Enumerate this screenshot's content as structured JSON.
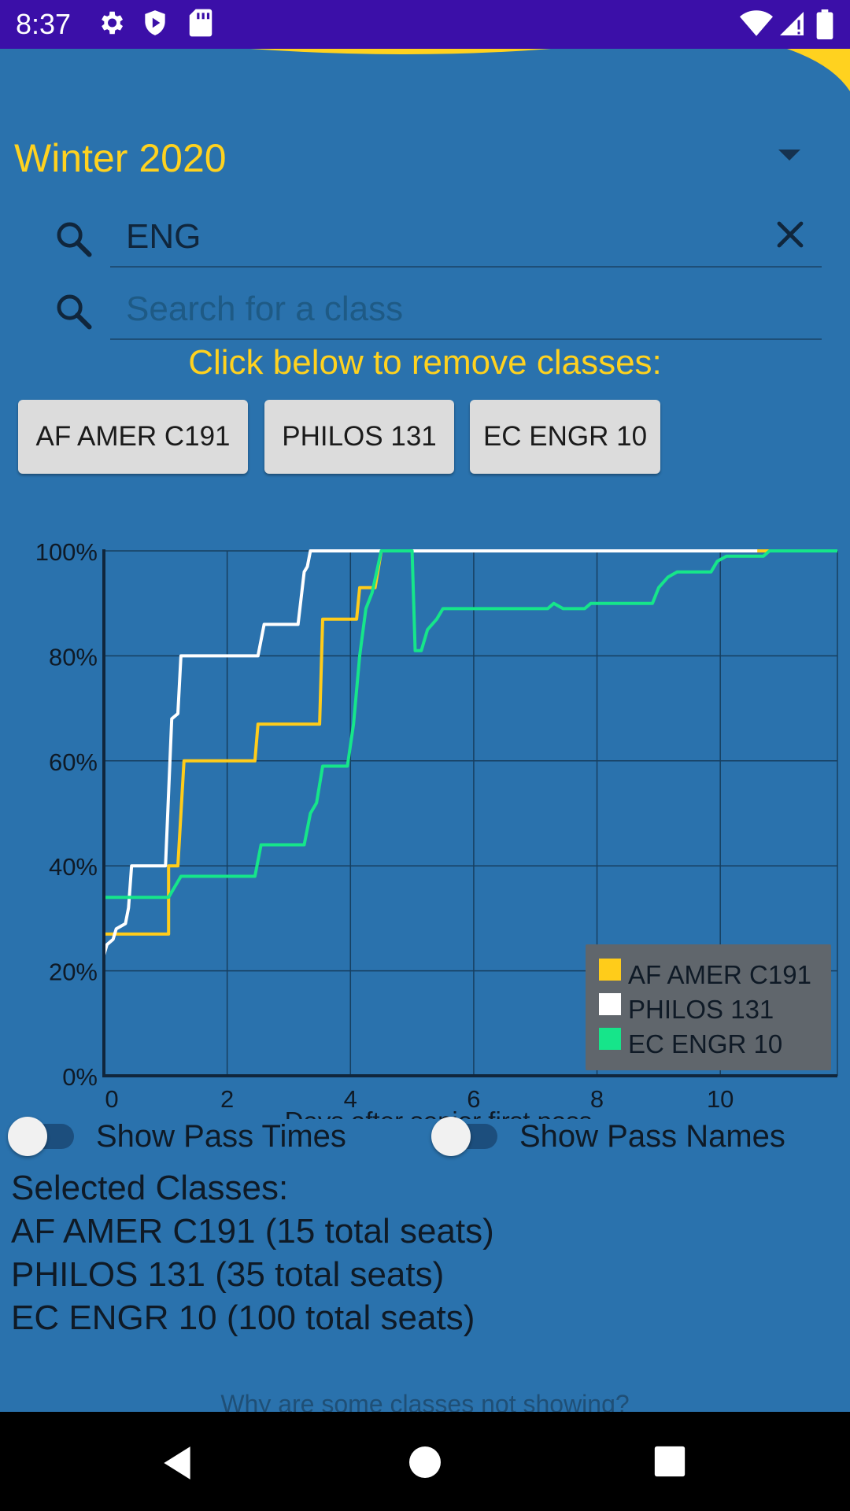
{
  "status_bar": {
    "time": "8:37"
  },
  "term_selector": {
    "label": "Winter 2020"
  },
  "search": {
    "query": "ENG",
    "placeholder": "Search for a class"
  },
  "remove_label": "Click below to remove classes:",
  "class_chips": [
    "AF AMER C191",
    "PHILOS 131",
    "EC ENGR 10"
  ],
  "chart_data": {
    "type": "line",
    "xlabel": "Days after senior first pass",
    "ylabel": "",
    "xlim": [
      0,
      11.9
    ],
    "ylim": [
      0,
      100
    ],
    "x_ticks": [
      "0",
      "2",
      "4",
      "6",
      "8",
      "10"
    ],
    "y_ticks": [
      "0%",
      "20%",
      "40%",
      "60%",
      "80%",
      "100%"
    ],
    "grid": true,
    "legend": "bottom-right",
    "series": [
      {
        "name": "AF AMER C191",
        "color": "#ffcc1a",
        "points": [
          [
            0,
            27
          ],
          [
            1.05,
            27
          ],
          [
            1.05,
            40
          ],
          [
            1.2,
            40
          ],
          [
            1.3,
            60
          ],
          [
            2.45,
            60
          ],
          [
            2.5,
            67
          ],
          [
            3.5,
            67
          ],
          [
            3.55,
            87
          ],
          [
            4.1,
            87
          ],
          [
            4.15,
            93
          ],
          [
            4.4,
            93
          ],
          [
            4.5,
            100
          ],
          [
            11.9,
            100
          ]
        ]
      },
      {
        "name": "PHILOS 131",
        "color": "#ffffff",
        "points": [
          [
            0,
            23
          ],
          [
            0.05,
            25
          ],
          [
            0.15,
            26
          ],
          [
            0.2,
            28
          ],
          [
            0.35,
            29
          ],
          [
            0.4,
            32
          ],
          [
            0.45,
            40
          ],
          [
            1.0,
            40
          ],
          [
            1.1,
            68
          ],
          [
            1.2,
            69
          ],
          [
            1.25,
            80
          ],
          [
            2.5,
            80
          ],
          [
            2.6,
            86
          ],
          [
            3.15,
            86
          ],
          [
            3.25,
            96
          ],
          [
            3.3,
            97
          ],
          [
            3.35,
            100
          ],
          [
            10.6,
            100
          ]
        ]
      },
      {
        "name": "EC ENGR 10",
        "color": "#16e58a",
        "points": [
          [
            0,
            34
          ],
          [
            1.05,
            34
          ],
          [
            1.15,
            36
          ],
          [
            1.25,
            38
          ],
          [
            2.45,
            38
          ],
          [
            2.55,
            44
          ],
          [
            3.25,
            44
          ],
          [
            3.35,
            50
          ],
          [
            3.45,
            52
          ],
          [
            3.55,
            59
          ],
          [
            3.95,
            59
          ],
          [
            4.05,
            67
          ],
          [
            4.15,
            80
          ],
          [
            4.25,
            89
          ],
          [
            4.35,
            92
          ],
          [
            4.5,
            100
          ],
          [
            5.0,
            100
          ],
          [
            5.05,
            81
          ],
          [
            5.15,
            81
          ],
          [
            5.25,
            85
          ],
          [
            5.4,
            87
          ],
          [
            5.5,
            89
          ],
          [
            7.2,
            89
          ],
          [
            7.3,
            90
          ],
          [
            7.45,
            89
          ],
          [
            7.8,
            89
          ],
          [
            7.9,
            90
          ],
          [
            8.9,
            90
          ],
          [
            9.0,
            93
          ],
          [
            9.15,
            95
          ],
          [
            9.3,
            96
          ],
          [
            9.85,
            96
          ],
          [
            9.95,
            98
          ],
          [
            10.1,
            99
          ],
          [
            10.7,
            99
          ],
          [
            10.8,
            100
          ],
          [
            11.9,
            100
          ]
        ]
      }
    ]
  },
  "toggles": {
    "pass_times": "Show Pass Times",
    "pass_names": "Show Pass Names"
  },
  "selected": {
    "title": "Selected Classes:",
    "items": [
      "AF AMER C191 (15 total seats)",
      "PHILOS 131 (35 total seats)",
      "EC ENGR 10 (100 total seats)"
    ]
  },
  "help_link": "Why are some classes not showing?",
  "colors": {
    "background": "#2a72ad",
    "status_bar": "#3b0fa8",
    "accent": "#ffd21f",
    "chart_bg": "#2a72ad"
  }
}
